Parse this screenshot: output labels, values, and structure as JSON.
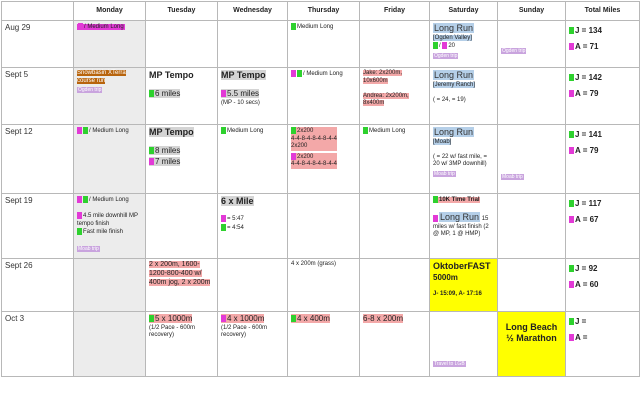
{
  "headers": [
    "",
    "Monday",
    "Tuesday",
    "Wednesday",
    "Thursday",
    "Friday",
    "Saturday",
    "Sunday",
    "Total Miles"
  ],
  "weeks": [
    {
      "label": "Aug 29",
      "monday": "/  Medium Long",
      "thursday": "Medium Long",
      "saturday": {
        "title": "Long Run",
        "sub": "[Ogden Valley]",
        "j": "J: ",
        "a": "/ ",
        "num": "20",
        "trip": "Ogden trip"
      },
      "sunday_trip": "Ogden trip",
      "total_j": "J = 134",
      "total_a": "A = 71"
    },
    {
      "label": "Sept 5",
      "monday": "Snowbasin XTerra course run",
      "monday_trip": "Ogden trip",
      "tuesday": {
        "title": "MP Tempo",
        "line": "6 miles"
      },
      "wednesday": {
        "title": "MP Tempo",
        "line": "5.5 miles",
        "sub": "(MP - 10 secs)"
      },
      "thursday": "/  Medium Long",
      "friday": {
        "a": "Jake: 2x200m, 10x600m",
        "b": "Andrea: 2x200m, 8x400m"
      },
      "saturday": {
        "title": "Long Run",
        "sub": "[Jeremy Ranch]",
        "line": "( = 24,  = 19)"
      },
      "total_j": "J = 142",
      "total_a": "A = 79"
    },
    {
      "label": "Sept 12",
      "monday": "/  Medium Long",
      "tuesday": {
        "title": "MP Tempo",
        "l1": "8 miles",
        "l2": "7 miles"
      },
      "wednesday": "Medium Long",
      "thursday": {
        "a": "2x200",
        "a2": "4-4-8-4-8-4-8-4-4",
        "a3": "2x200",
        "b": "2x200",
        "b2": "4-4-8-4-8-4-8-4-4"
      },
      "friday": "Medium Long",
      "saturday": {
        "title": "Long Run",
        "sub": "[Moab]",
        "line": "( = 22 w/ fast mile,  = 20 w/ 3MP downhill)",
        "trip": "Moab trip"
      },
      "sunday_trip": "Moab trip",
      "total_j": "J = 141",
      "total_a": "A = 79"
    },
    {
      "label": "Sept 19",
      "monday": "/  Medium Long",
      "monday_l2": "4.5 mile downhill MP tempo finish",
      "monday_l3": "Fast mile finish",
      "monday_trip": "Moab trip",
      "wednesday": {
        "title": "6 x Mile",
        "l1": "= 5:47",
        "l2": "= 4:54"
      },
      "saturday": {
        "a": "10K Time Trial",
        "b": "Long Run",
        "b2": "15 miles w/ fast finish (2 @ MP, 1 @ HMP)"
      },
      "total_j": "J = 117",
      "total_a": "A = 67"
    },
    {
      "label": "Sept 26",
      "tuesday": "2 x 200m, 1600-1200-800-400 w/ 400m jog, 2 x 200m",
      "thursday": "4 x 200m (grass)",
      "saturday": {
        "title": "OktoberFAST",
        "line": "5000m",
        "sub": "J- 15:09,  A- 17:16"
      },
      "total_j": "J = 92",
      "total_a": "A = 60"
    },
    {
      "label": "Oct 3",
      "tuesday": {
        "title": "5 x 1000m",
        "sub": "(1/2 Pace - 600m recovery)"
      },
      "wednesday": {
        "title": "4 x 1000m",
        "sub": "(1/2 Pace - 600m recovery)"
      },
      "thursday": "4 x 400m",
      "friday": "6-8 x 200m",
      "saturday_trip": "Travel to LGB",
      "sunday": "Long Beach ½ Marathon",
      "total_j": "J =",
      "total_a": "A ="
    }
  ],
  "colors": {
    "jake": "#2ed12e",
    "andrea": "#e23ad6",
    "trip": "#c9a4de",
    "pink": "#f3a8a8",
    "blue": "#b5cfe8",
    "race": "#ffff00"
  }
}
